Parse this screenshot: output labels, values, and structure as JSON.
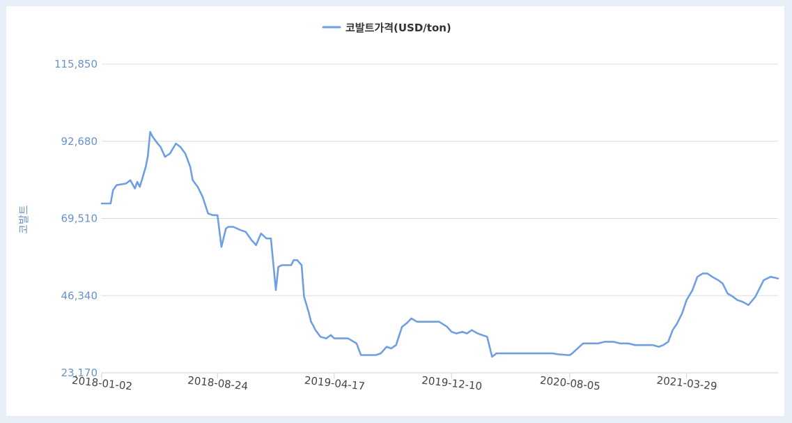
{
  "chart_data": {
    "type": "line",
    "ylabel": "코발트",
    "ylim": [
      23170,
      115850
    ],
    "y_ticks": [
      "23,170",
      "46,340",
      "69,510",
      "92,680",
      "115,850"
    ],
    "y_tick_values": [
      23170,
      46340,
      69510,
      92680,
      115850
    ],
    "x_ticks": [
      "2018-01-02",
      "2018-08-24",
      "2019-04-17",
      "2019-12-10",
      "2020-08-05",
      "2021-03-29"
    ],
    "xlim": [
      "2018-01-02",
      "2021-09-30"
    ],
    "grid": true,
    "legend_position": "top-center",
    "series": [
      {
        "name": "코발트가격(USD/ton)",
        "color": "#6f9fe3",
        "x": [
          "2018-01-02",
          "2018-01-20",
          "2018-01-25",
          "2018-02-01",
          "2018-02-20",
          "2018-03-01",
          "2018-03-10",
          "2018-03-15",
          "2018-03-20",
          "2018-03-28",
          "2018-04-01",
          "2018-04-05",
          "2018-04-10",
          "2018-04-15",
          "2018-04-25",
          "2018-05-01",
          "2018-05-10",
          "2018-05-20",
          "2018-06-01",
          "2018-06-10",
          "2018-06-20",
          "2018-06-30",
          "2018-07-05",
          "2018-07-15",
          "2018-07-25",
          "2018-08-05",
          "2018-08-15",
          "2018-08-24",
          "2018-09-01",
          "2018-09-10",
          "2018-09-15",
          "2018-09-25",
          "2018-10-10",
          "2018-10-20",
          "2018-11-01",
          "2018-11-10",
          "2018-11-20",
          "2018-12-01",
          "2018-12-10",
          "2018-12-20",
          "2018-12-25",
          "2019-01-01",
          "2019-01-10",
          "2019-01-20",
          "2019-01-25",
          "2019-02-01",
          "2019-02-10",
          "2019-02-15",
          "2019-02-20",
          "2019-02-25",
          "2019-03-01",
          "2019-03-05",
          "2019-03-10",
          "2019-03-20",
          "2019-04-01",
          "2019-04-10",
          "2019-04-17",
          "2019-05-01",
          "2019-05-15",
          "2019-06-01",
          "2019-06-10",
          "2019-06-20",
          "2019-07-01",
          "2019-07-10",
          "2019-07-20",
          "2019-08-01",
          "2019-08-10",
          "2019-08-20",
          "2019-09-01",
          "2019-09-10",
          "2019-09-20",
          "2019-10-01",
          "2019-10-15",
          "2019-11-01",
          "2019-11-15",
          "2019-12-01",
          "2019-12-10",
          "2019-12-20",
          "2020-01-01",
          "2020-01-10",
          "2020-01-20",
          "2020-02-01",
          "2020-02-10",
          "2020-02-20",
          "2020-03-01",
          "2020-03-10",
          "2020-03-15",
          "2020-03-20",
          "2020-04-01",
          "2020-04-15",
          "2020-05-01",
          "2020-05-15",
          "2020-06-01",
          "2020-06-15",
          "2020-07-01",
          "2020-07-15",
          "2020-08-01",
          "2020-08-05",
          "2020-08-10",
          "2020-09-01",
          "2020-09-15",
          "2020-10-01",
          "2020-10-15",
          "2020-11-01",
          "2020-11-15",
          "2020-12-01",
          "2020-12-15",
          "2021-01-01",
          "2021-01-10",
          "2021-01-20",
          "2021-02-01",
          "2021-02-10",
          "2021-02-20",
          "2021-03-01",
          "2021-03-10",
          "2021-03-20",
          "2021-03-29",
          "2021-04-10",
          "2021-04-20",
          "2021-05-01",
          "2021-05-10",
          "2021-05-20",
          "2021-06-01",
          "2021-06-10",
          "2021-06-20",
          "2021-07-01",
          "2021-07-10",
          "2021-07-20",
          "2021-08-01",
          "2021-08-15",
          "2021-09-01",
          "2021-09-15",
          "2021-09-30"
        ],
        "values": [
          74000,
          74000,
          78000,
          79500,
          80000,
          81000,
          78500,
          80500,
          79000,
          83000,
          85000,
          88000,
          95500,
          94000,
          92000,
          91000,
          88000,
          89000,
          92000,
          91000,
          89000,
          85000,
          81000,
          79000,
          76000,
          71000,
          70500,
          70500,
          61000,
          66500,
          67000,
          67000,
          66000,
          65500,
          63000,
          61500,
          65000,
          63500,
          63500,
          48000,
          55000,
          55500,
          55500,
          55500,
          57000,
          57000,
          55500,
          46000,
          43500,
          41000,
          38500,
          37500,
          36000,
          34000,
          33500,
          34500,
          33500,
          33500,
          33500,
          32000,
          28500,
          28500,
          28500,
          28500,
          29000,
          31000,
          30500,
          31500,
          37000,
          38000,
          39500,
          38500,
          38500,
          38500,
          38500,
          37000,
          35500,
          35000,
          35500,
          35000,
          36000,
          35000,
          34500,
          34000,
          28000,
          29000,
          29000,
          29000,
          29000,
          29000,
          29000,
          29000,
          29000,
          29000,
          29000,
          28700,
          28500,
          28500,
          29000,
          32000,
          32000,
          32000,
          32500,
          32500,
          32000,
          32000,
          31500,
          31500,
          31500,
          31500,
          31000,
          31500,
          32500,
          36000,
          38000,
          41000,
          45000,
          48000,
          52000,
          53000,
          53000,
          52000,
          51000,
          50000,
          47000,
          46000,
          45000,
          44500,
          43500,
          46000,
          51000,
          52000,
          51500
        ]
      }
    ]
  }
}
